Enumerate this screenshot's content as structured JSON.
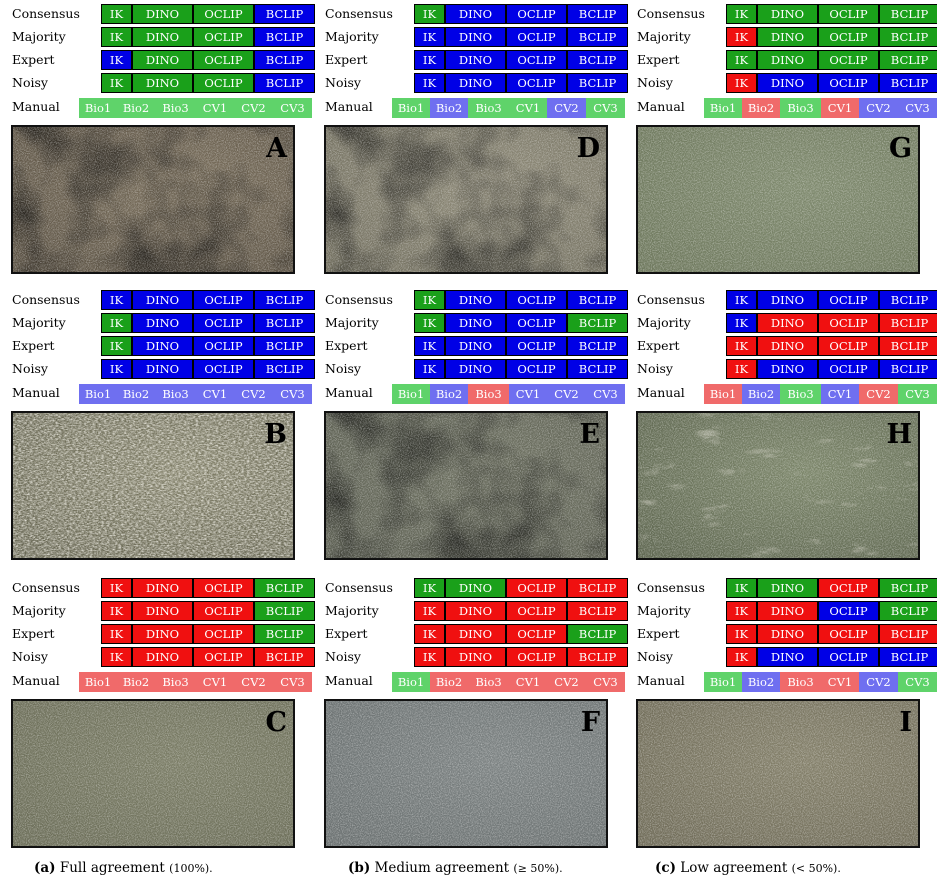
{
  "colors": {
    "green": "#1aa01a",
    "blue": "#0000e6",
    "red": "#f01010",
    "lgreen": "#5fd36a",
    "lblue": "#6f6ff0",
    "lred": "#f06a6a"
  },
  "row_labels": [
    "Consensus",
    "Majority",
    "Expert",
    "Noisy"
  ],
  "manual_label": "Manual",
  "model_labels": [
    "IK",
    "DINO",
    "OCLIP",
    "BCLIP"
  ],
  "manual_labels": [
    "Bio1",
    "Bio2",
    "Bio3",
    "CV1",
    "CV2",
    "CV3"
  ],
  "panels": [
    {
      "letter": "A",
      "photo": "photo-a",
      "rows": [
        [
          "green",
          "green",
          "green",
          "blue"
        ],
        [
          "green",
          "green",
          "green",
          "blue"
        ],
        [
          "blue",
          "green",
          "green",
          "blue"
        ],
        [
          "green",
          "green",
          "green",
          "blue"
        ]
      ],
      "manual": [
        "lgreen",
        "lgreen",
        "lgreen",
        "lgreen",
        "lgreen",
        "lgreen"
      ]
    },
    {
      "letter": "D",
      "photo": "photo-d",
      "rows": [
        [
          "green",
          "blue",
          "blue",
          "blue"
        ],
        [
          "blue",
          "blue",
          "blue",
          "blue"
        ],
        [
          "blue",
          "blue",
          "blue",
          "blue"
        ],
        [
          "blue",
          "blue",
          "blue",
          "blue"
        ]
      ],
      "manual": [
        "lgreen",
        "lblue",
        "lgreen",
        "lgreen",
        "lblue",
        "lgreen"
      ]
    },
    {
      "letter": "G",
      "photo": "photo-g",
      "rows": [
        [
          "green",
          "green",
          "green",
          "green"
        ],
        [
          "red",
          "green",
          "green",
          "green"
        ],
        [
          "green",
          "green",
          "green",
          "green"
        ],
        [
          "red",
          "blue",
          "blue",
          "blue"
        ]
      ],
      "manual": [
        "lgreen",
        "lred",
        "lgreen",
        "lred",
        "lblue",
        "lblue"
      ]
    },
    {
      "letter": "B",
      "photo": "photo-b",
      "rows": [
        [
          "blue",
          "blue",
          "blue",
          "blue"
        ],
        [
          "green",
          "blue",
          "blue",
          "blue"
        ],
        [
          "green",
          "blue",
          "blue",
          "blue"
        ],
        [
          "blue",
          "blue",
          "blue",
          "blue"
        ]
      ],
      "manual": [
        "lblue",
        "lblue",
        "lblue",
        "lblue",
        "lblue",
        "lblue"
      ]
    },
    {
      "letter": "E",
      "photo": "photo-e",
      "rows": [
        [
          "green",
          "blue",
          "blue",
          "blue"
        ],
        [
          "green",
          "blue",
          "blue",
          "green"
        ],
        [
          "blue",
          "blue",
          "blue",
          "blue"
        ],
        [
          "blue",
          "blue",
          "blue",
          "blue"
        ]
      ],
      "manual": [
        "lgreen",
        "lblue",
        "lred",
        "lblue",
        "lblue",
        "lblue"
      ]
    },
    {
      "letter": "H",
      "photo": "photo-h",
      "rows": [
        [
          "blue",
          "blue",
          "blue",
          "blue"
        ],
        [
          "blue",
          "red",
          "red",
          "red"
        ],
        [
          "red",
          "red",
          "red",
          "red"
        ],
        [
          "red",
          "blue",
          "blue",
          "blue"
        ]
      ],
      "manual": [
        "lred",
        "lblue",
        "lgreen",
        "lblue",
        "lred",
        "lgreen"
      ]
    },
    {
      "letter": "C",
      "photo": "photo-c",
      "rows": [
        [
          "red",
          "red",
          "red",
          "green"
        ],
        [
          "red",
          "red",
          "red",
          "green"
        ],
        [
          "red",
          "red",
          "red",
          "green"
        ],
        [
          "red",
          "red",
          "red",
          "red"
        ]
      ],
      "manual": [
        "lred",
        "lred",
        "lred",
        "lred",
        "lred",
        "lred"
      ]
    },
    {
      "letter": "F",
      "photo": "photo-f",
      "rows": [
        [
          "green",
          "green",
          "red",
          "red"
        ],
        [
          "red",
          "red",
          "red",
          "red"
        ],
        [
          "red",
          "red",
          "red",
          "green"
        ],
        [
          "red",
          "red",
          "red",
          "red"
        ]
      ],
      "manual": [
        "lgreen",
        "lred",
        "lred",
        "lred",
        "lred",
        "lred"
      ]
    },
    {
      "letter": "I",
      "photo": "photo-i",
      "rows": [
        [
          "green",
          "green",
          "red",
          "green"
        ],
        [
          "red",
          "red",
          "blue",
          "green"
        ],
        [
          "red",
          "red",
          "red",
          "red"
        ],
        [
          "red",
          "blue",
          "blue",
          "blue"
        ]
      ],
      "manual": [
        "lgreen",
        "lblue",
        "lred",
        "lred",
        "lblue",
        "lgreen"
      ]
    }
  ],
  "captions": [
    {
      "tag": "(a)",
      "text": "Full agreement",
      "pct": "(100%)."
    },
    {
      "tag": "(b)",
      "text": "Medium agreement",
      "pct": "(≥ 50%)."
    },
    {
      "tag": "(c)",
      "text": "Low agreement",
      "pct": "(< 50%)."
    }
  ]
}
